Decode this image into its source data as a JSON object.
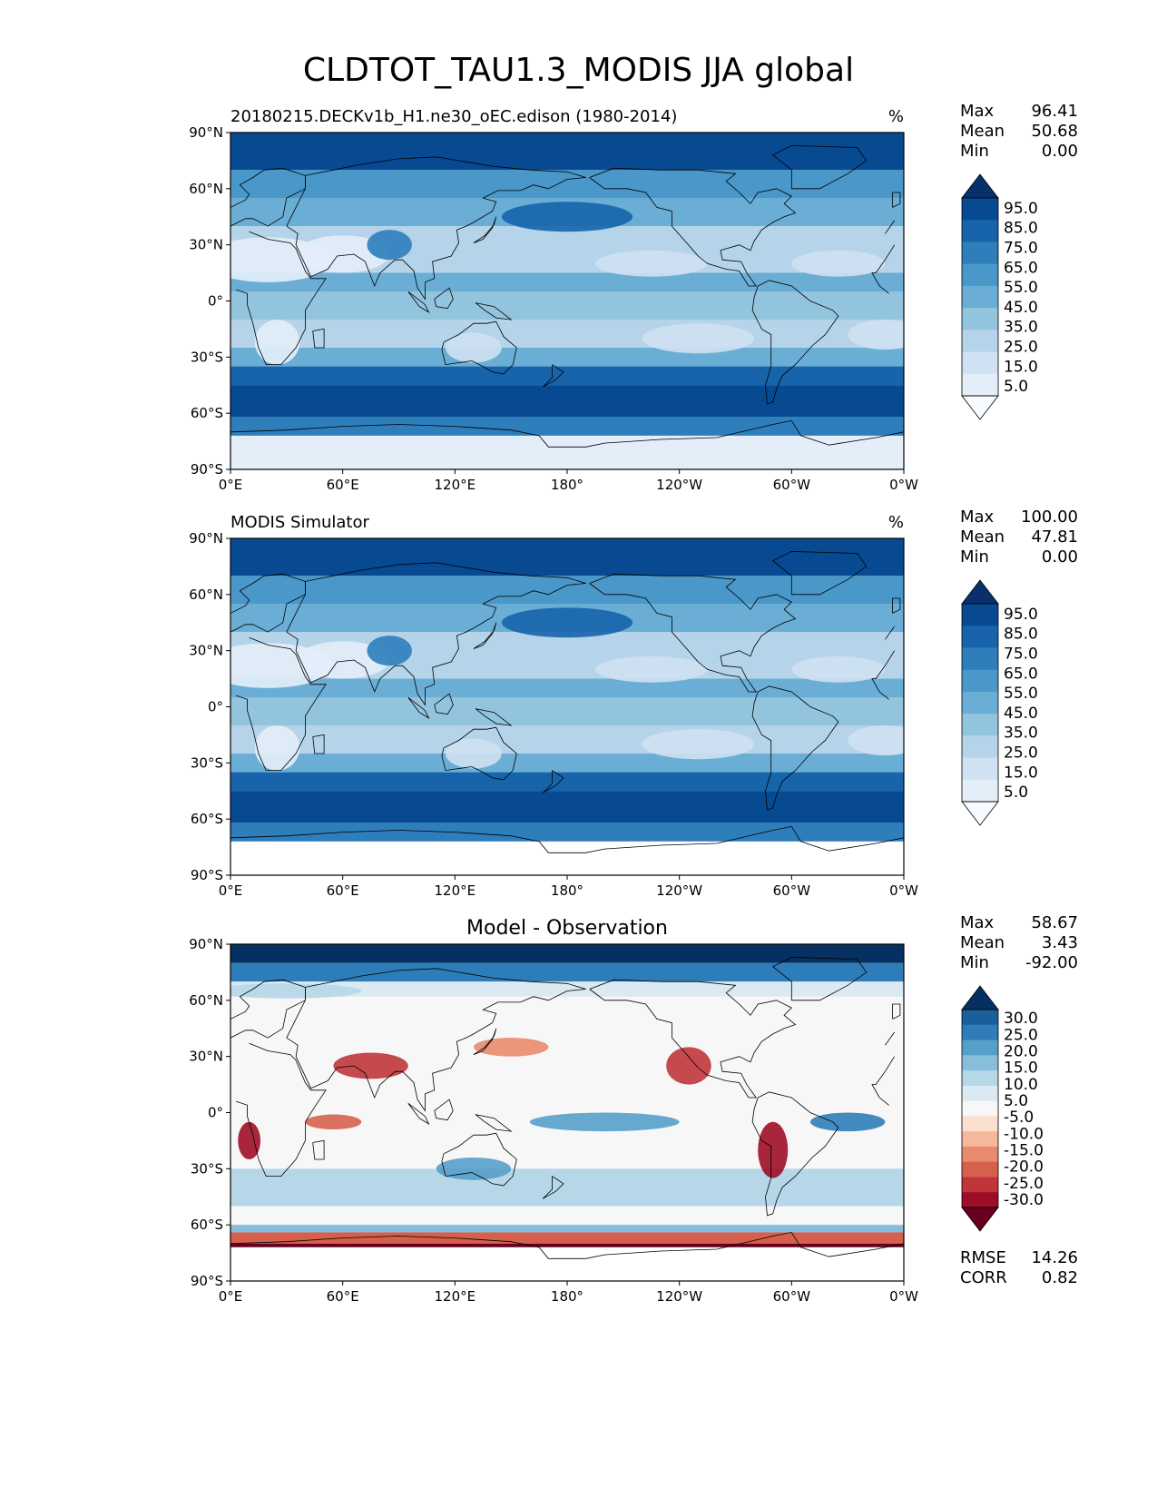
{
  "title": "CLDTOT_TAU1.3_MODIS JJA global",
  "lat_ticks": [
    "90°N",
    "60°N",
    "30°N",
    "0°",
    "30°S",
    "60°S",
    "90°S"
  ],
  "lon_ticks": [
    "0°E",
    "60°E",
    "120°E",
    "180°",
    "120°W",
    "60°W",
    "0°W"
  ],
  "panels": [
    {
      "id": "model",
      "title": "20180215.DECKv1b_H1.ne30_oEC.edison (1980-2014)",
      "title_position": "left",
      "units": "%",
      "stats": [
        {
          "label": "Max",
          "value": "96.41"
        },
        {
          "label": "Mean",
          "value": "50.68"
        },
        {
          "label": "Min",
          "value": "0.00"
        }
      ],
      "colorbar": {
        "labels": [
          "95.0",
          "85.0",
          "75.0",
          "65.0",
          "55.0",
          "45.0",
          "35.0",
          "25.0",
          "15.0",
          "5.0"
        ],
        "colors": [
          "#f7fbff",
          "#e3eef9",
          "#cfe1f2",
          "#b5d4e9",
          "#93c4de",
          "#6aaed6",
          "#4a97c9",
          "#2e7ebc",
          "#1764ab",
          "#084a92",
          "#08306b"
        ],
        "extend": "both"
      }
    },
    {
      "id": "obs",
      "title": "MODIS Simulator",
      "title_position": "left",
      "units": "%",
      "stats": [
        {
          "label": "Max",
          "value": "100.00"
        },
        {
          "label": "Mean",
          "value": "47.81"
        },
        {
          "label": "Min",
          "value": "0.00"
        }
      ],
      "colorbar": {
        "labels": [
          "95.0",
          "85.0",
          "75.0",
          "65.0",
          "55.0",
          "45.0",
          "35.0",
          "25.0",
          "15.0",
          "5.0"
        ],
        "colors": [
          "#f7fbff",
          "#e3eef9",
          "#cfe1f2",
          "#b5d4e9",
          "#93c4de",
          "#6aaed6",
          "#4a97c9",
          "#2e7ebc",
          "#1764ab",
          "#084a92",
          "#08306b"
        ],
        "extend": "both"
      }
    },
    {
      "id": "diff",
      "title": "Model - Observation",
      "title_position": "center",
      "units": "",
      "stats": [
        {
          "label": "Max",
          "value": "58.67"
        },
        {
          "label": "Mean",
          "value": "3.43"
        },
        {
          "label": "Min",
          "value": "-92.00"
        }
      ],
      "extra_stats": [
        {
          "label": "RMSE",
          "value": "14.26"
        },
        {
          "label": "CORR",
          "value": "0.82"
        }
      ],
      "colorbar": {
        "labels": [
          "30.0",
          "25.0",
          "20.0",
          "15.0",
          "10.0",
          "5.0",
          "-5.0",
          "-10.0",
          "-15.0",
          "-20.0",
          "-25.0",
          "-30.0"
        ],
        "colors": [
          "#67001f",
          "#9e0d27",
          "#c0353a",
          "#d6604d",
          "#e98a6e",
          "#f5b89b",
          "#fbe0d0",
          "#f7f7f7",
          "#dbeaf2",
          "#b6d7e8",
          "#87bedc",
          "#569fca",
          "#2f7db8",
          "#1a5e9c",
          "#053061"
        ],
        "extend": "both"
      }
    }
  ]
}
